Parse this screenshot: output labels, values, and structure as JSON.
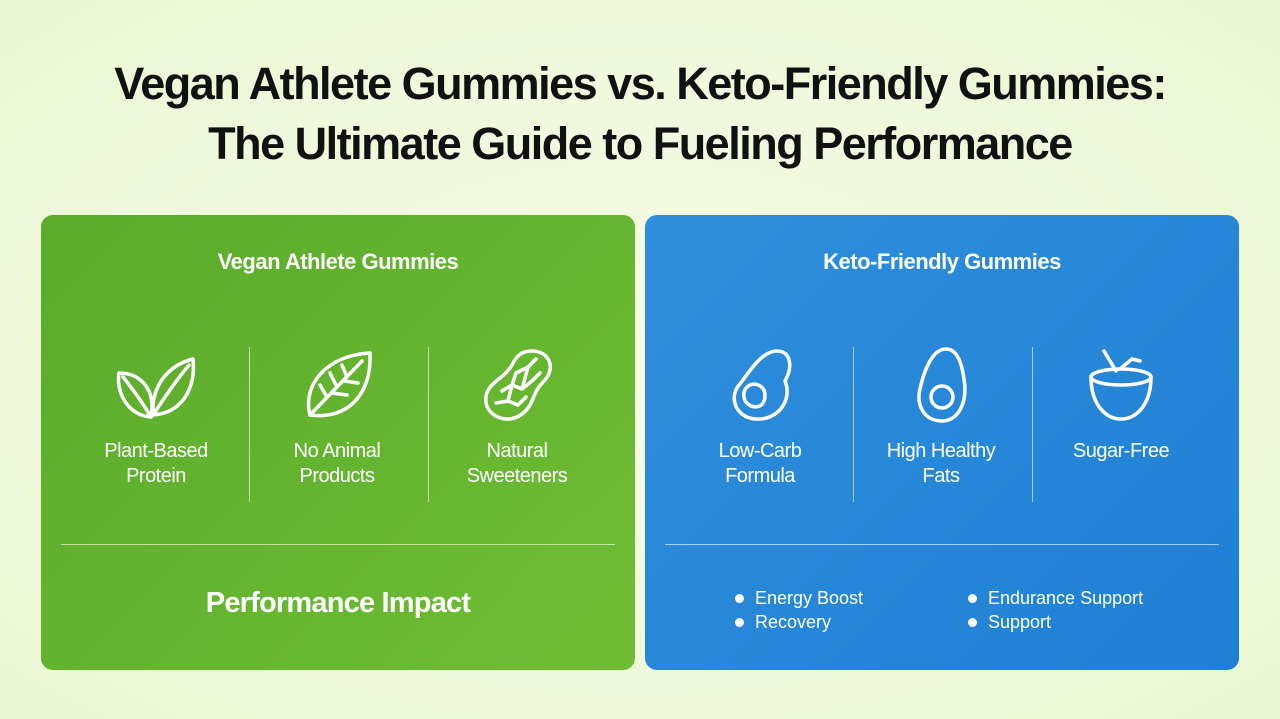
{
  "header": {
    "title_lines": [
      "Vegan Athlete Gummies vs. Keto-Friendly Gummies:",
      "The Ultimate Guide to Fueling Performance"
    ]
  },
  "panels": [
    {
      "title": "Vegan Athlete Gummies",
      "features": [
        "Plant-Based Protein",
        "No Animal Products",
        "Natural Sweeteners"
      ],
      "footer": "Performance Impact"
    },
    {
      "title": "Keto-Friendly Gummies",
      "features": [
        "Low-Carb Formula",
        "High Healthy Fats",
        "Sugar-Free"
      ],
      "bullets": [
        "Energy Boost",
        "Recovery",
        "Endurance Support",
        "Support"
      ]
    }
  ]
}
